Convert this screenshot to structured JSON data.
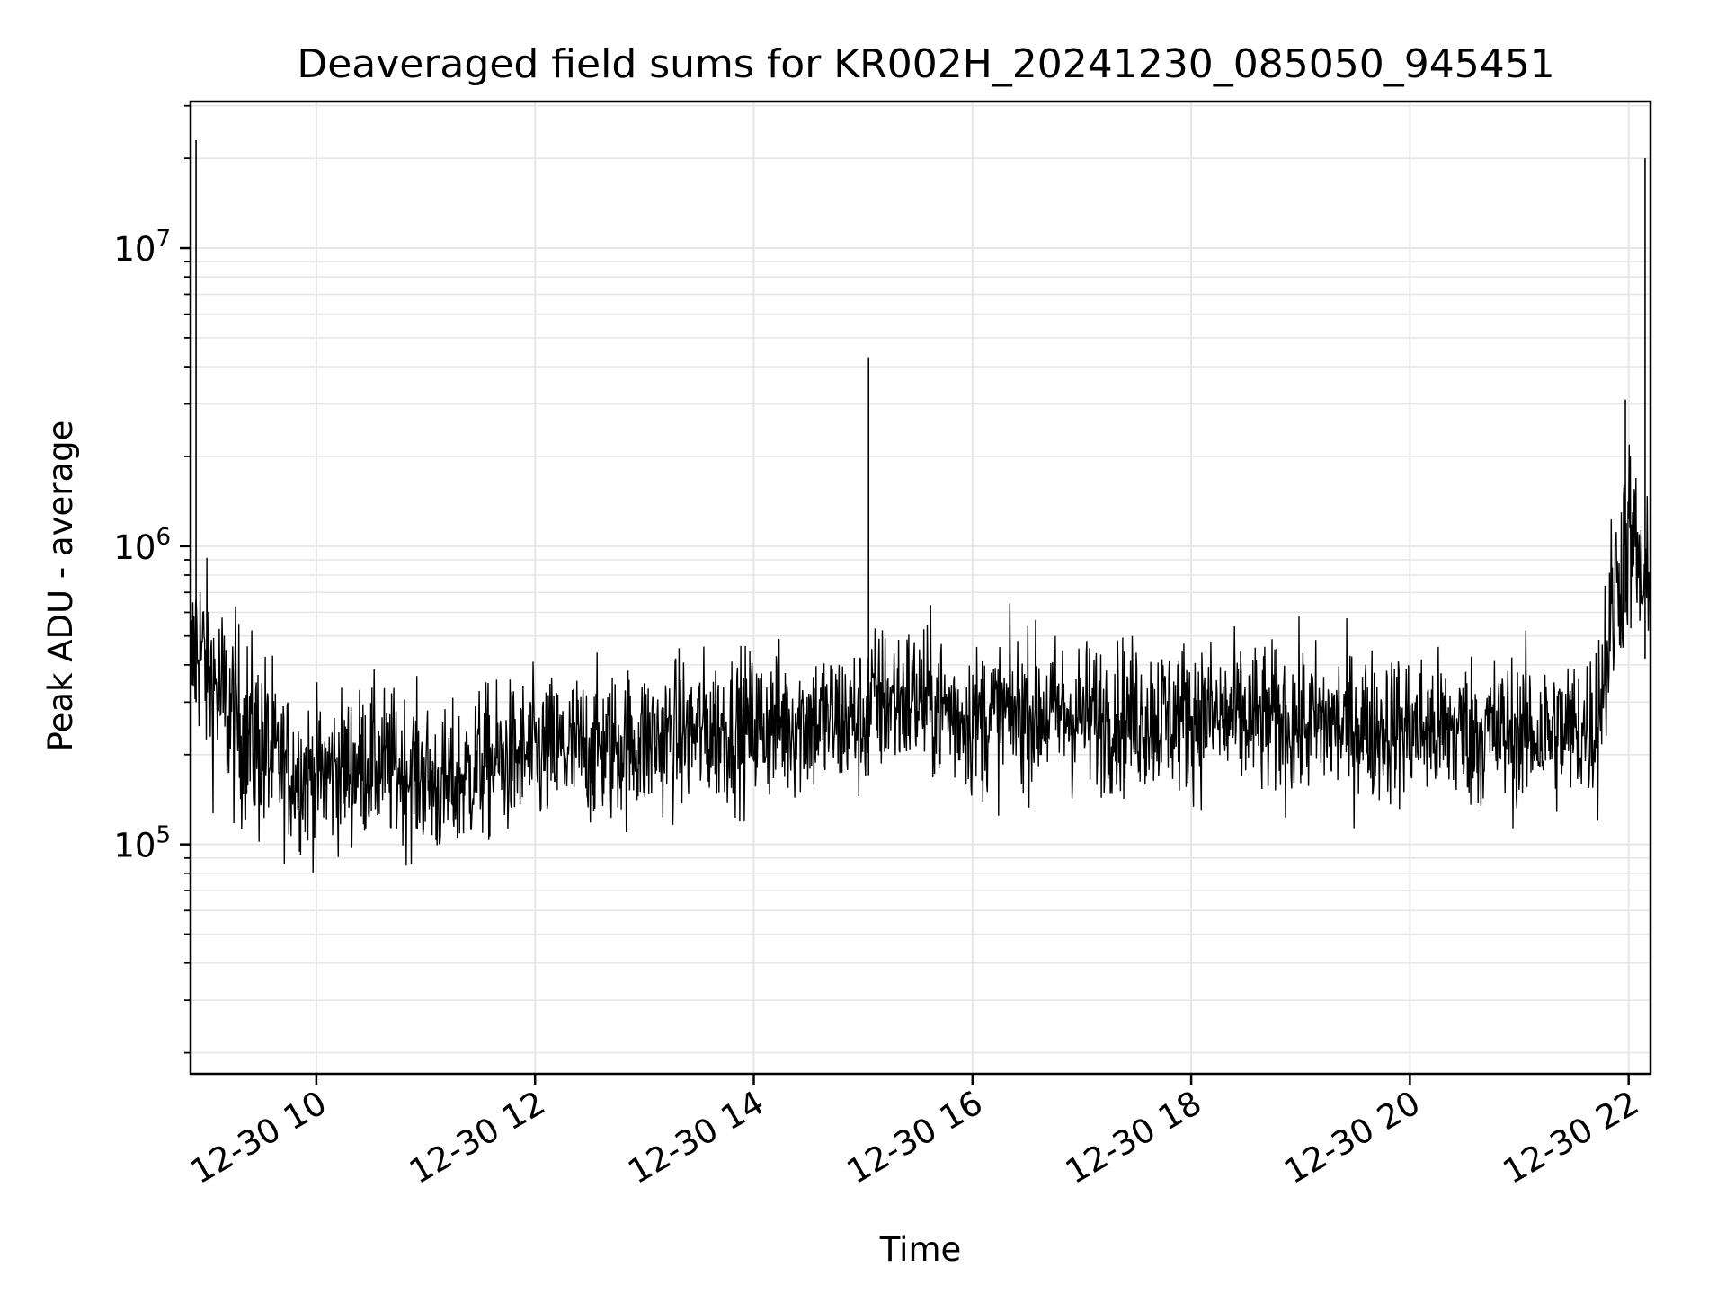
{
  "chart_data": {
    "type": "line",
    "title": "Deaveraged field sums for KR002H_20241230_085050_945451",
    "xlabel": "Time",
    "ylabel": "Peak ADU - average",
    "yscale": "log",
    "grid": true,
    "x_tick_labels": [
      "12-30 10",
      "12-30 12",
      "12-30 14",
      "12-30 16",
      "12-30 18",
      "12-30 20",
      "12-30 22"
    ],
    "x_ticks_hours": [
      10,
      12,
      14,
      16,
      18,
      20,
      22
    ],
    "y_tick_labels": [
      {
        "base": "10",
        "exp": "5"
      },
      {
        "base": "10",
        "exp": "6"
      },
      {
        "base": "10",
        "exp": "7"
      }
    ],
    "y_ticks": [
      100000,
      1000000,
      10000000
    ],
    "xlim_hours": [
      8.85,
      22.2
    ],
    "ylim": [
      17000,
      31000000
    ],
    "series": [
      {
        "color": "#000000",
        "x_hours": [
          8.85,
          8.9,
          9.0,
          9.15,
          9.3,
          9.5,
          9.7,
          10.0,
          10.5,
          11.0,
          11.15,
          11.5,
          12.0,
          12.5,
          13.0,
          13.5,
          14.0,
          14.5,
          15.0,
          15.08,
          15.5,
          16.0,
          16.5,
          17.0,
          17.5,
          18.0,
          18.5,
          19.0,
          19.5,
          20.0,
          20.5,
          21.0,
          21.5,
          21.7,
          21.8,
          21.9,
          22.0,
          22.15,
          22.2
        ],
        "values": [
          350000,
          500000,
          380000,
          300000,
          250000,
          210000,
          180000,
          170000,
          190000,
          170000,
          150000,
          185000,
          200000,
          210000,
          220000,
          240000,
          250000,
          260000,
          260000,
          300000,
          310000,
          260000,
          280000,
          270000,
          270000,
          270000,
          260000,
          255000,
          250000,
          245000,
          240000,
          235000,
          240000,
          250000,
          450000,
          800000,
          1100000,
          700000,
          550000
        ],
        "spikes": [
          {
            "x_hours": 8.9,
            "value": 23000000
          },
          {
            "x_hours": 15.05,
            "value": 4300000
          },
          {
            "x_hours": 22.15,
            "value": 20000000
          },
          {
            "x_hours": 21.97,
            "value": 3100000
          }
        ]
      }
    ]
  }
}
